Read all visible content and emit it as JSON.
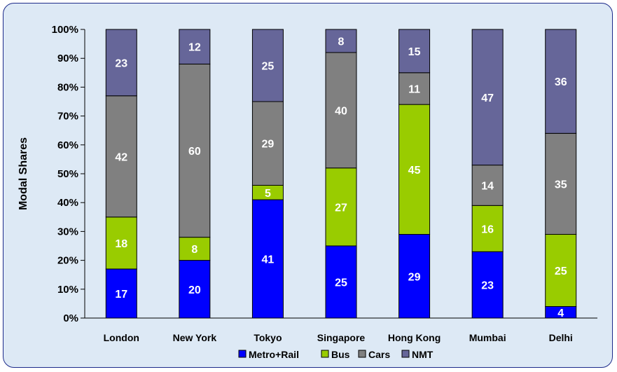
{
  "chart_data": {
    "type": "bar",
    "stacked": true,
    "title": "",
    "xlabel": "",
    "ylabel": "Modal Shares",
    "ylim": [
      0,
      100
    ],
    "yticks": [
      "0%",
      "10%",
      "20%",
      "30%",
      "40%",
      "50%",
      "60%",
      "70%",
      "80%",
      "90%",
      "100%"
    ],
    "categories": [
      "London",
      "New York",
      "Tokyo",
      "Singapore",
      "Hong Kong",
      "Mumbai",
      "Delhi"
    ],
    "series": [
      {
        "name": "Metro+Rail",
        "color": "#0000ff",
        "values": [
          17,
          20,
          41,
          25,
          29,
          23,
          4
        ]
      },
      {
        "name": "Bus",
        "color": "#99cc00",
        "values": [
          18,
          8,
          5,
          27,
          45,
          16,
          25
        ]
      },
      {
        "name": "Cars",
        "color": "#808080",
        "values": [
          42,
          60,
          29,
          40,
          11,
          14,
          35
        ]
      },
      {
        "name": "NMT",
        "color": "#666699",
        "values": [
          23,
          12,
          25,
          8,
          15,
          47,
          36
        ]
      }
    ],
    "legend_position": "bottom",
    "grid": false,
    "background_color": "#dde9f5"
  }
}
